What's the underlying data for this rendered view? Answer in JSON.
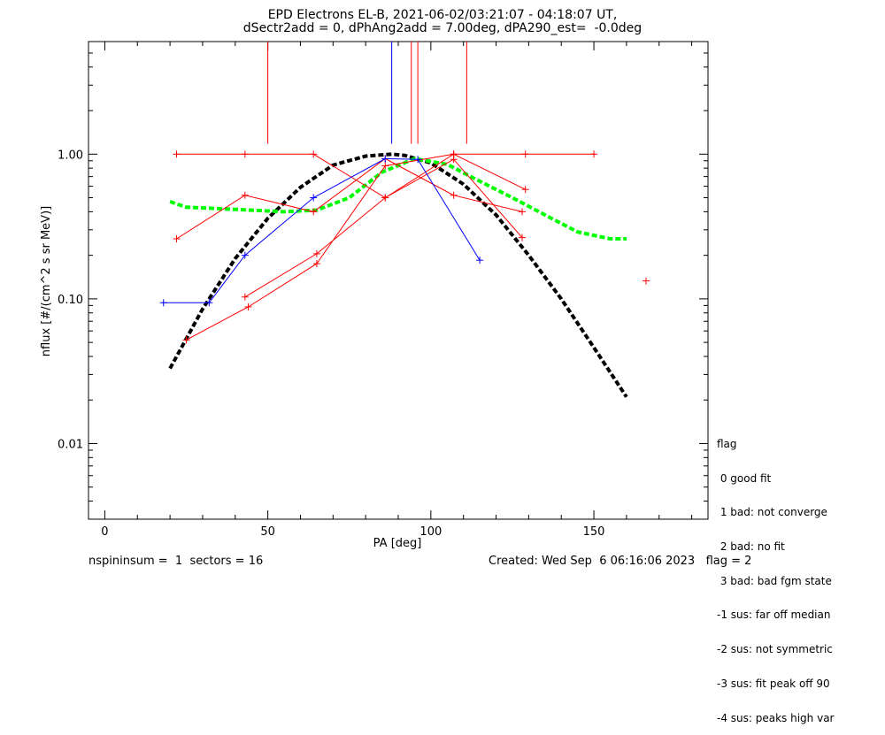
{
  "header": {
    "title_line1": "EPD Electrons EL-B, 2021-06-02/03:21:07 - 04:18:07 UT,",
    "title_line2": "dSectr2add = 0, dPhAng2add = 7.00deg, dPA290_est=  -0.0deg"
  },
  "legend": {
    "title": "flag",
    "items": [
      " 0 good fit",
      " 1 bad: not converge",
      " 2 bad: no fit",
      " 3 bad: bad fgm state",
      "-1 sus: far off median",
      "-2 sus: not symmetric",
      "-3 sus: fit peak off 90",
      "-4 sus: peaks high var"
    ]
  },
  "footer": {
    "left": "nspininsum =  1  sectors = 16",
    "right": "Created: Wed Sep  6 06:16:06 2023   flag = 2"
  },
  "chart_data": {
    "type": "line",
    "xlabel": "PA [deg]",
    "ylabel": "nflux [#/(cm^2 s sr MeV)]",
    "xlim": [
      -5,
      185
    ],
    "ylim": [
      0.003,
      6
    ],
    "yscale": "log",
    "xticks": [
      0,
      50,
      100,
      150
    ],
    "xtick_labels": [
      "0",
      "50",
      "100",
      "150"
    ],
    "yticks": [
      0.01,
      0.1,
      1.0
    ],
    "ytick_labels": [
      "0.01",
      "0.10",
      "1.00"
    ],
    "series": [
      {
        "color": "#ff0000",
        "marker": "+",
        "x": [
          22,
          43,
          64,
          86,
          107,
          128
        ],
        "y": [
          0.26,
          0.52,
          0.4,
          0.93,
          0.52,
          0.4
        ]
      },
      {
        "color": "#ff0000",
        "marker": "+",
        "x": [
          25,
          44,
          65,
          86,
          107,
          129
        ],
        "y": [
          0.052,
          0.088,
          0.175,
          0.83,
          1.0,
          0.57
        ]
      },
      {
        "color": "#ff0000",
        "marker": "+",
        "x": [
          43,
          65,
          86,
          107,
          128
        ],
        "y": [
          0.103,
          0.205,
          0.5,
          0.92,
          0.265
        ]
      },
      {
        "color": "#ff0000",
        "marker": "+",
        "x": [
          22,
          43,
          64,
          86,
          107,
          129,
          150
        ],
        "y": [
          1.0,
          1.0,
          1.0,
          0.5,
          1.0,
          1.0,
          1.0
        ]
      },
      {
        "color": "#0000ff",
        "marker": "+",
        "x": [
          18,
          32,
          43,
          64,
          86,
          96,
          115
        ],
        "y": [
          0.094,
          0.094,
          0.2,
          0.5,
          0.93,
          0.92,
          0.185
        ]
      }
    ],
    "isolated_points": [
      {
        "x": 166,
        "y": 0.133,
        "color": "#ff0000"
      }
    ],
    "vertical_lines": [
      {
        "x": 50,
        "y_from": 1.18,
        "color": "#ff0000"
      },
      {
        "x": 88,
        "y_from": 1.18,
        "color": "#0000ff"
      },
      {
        "x": 94,
        "y_from": 1.18,
        "color": "#ff0000"
      },
      {
        "x": 96,
        "y_from": 1.18,
        "color": "#ff0000"
      },
      {
        "x": 111,
        "y_from": 1.18,
        "color": "#ff0000"
      }
    ],
    "fits": [
      {
        "color": "#000000",
        "style": "dashed",
        "x": [
          20,
          30,
          40,
          50,
          60,
          70,
          80,
          88,
          92,
          100,
          110,
          120,
          130,
          140,
          150,
          160
        ],
        "y": [
          0.033,
          0.085,
          0.19,
          0.36,
          0.59,
          0.84,
          0.97,
          1.0,
          0.98,
          0.87,
          0.62,
          0.38,
          0.2,
          0.1,
          0.046,
          0.021
        ]
      },
      {
        "color": "#00ff00",
        "style": "dashed",
        "x": [
          20,
          25,
          35,
          45,
          55,
          65,
          75,
          85,
          95,
          105,
          115,
          125,
          135,
          145,
          155,
          160
        ],
        "y": [
          0.47,
          0.43,
          0.42,
          0.41,
          0.4,
          0.41,
          0.5,
          0.75,
          0.93,
          0.85,
          0.65,
          0.5,
          0.38,
          0.29,
          0.26,
          0.26
        ]
      }
    ]
  }
}
